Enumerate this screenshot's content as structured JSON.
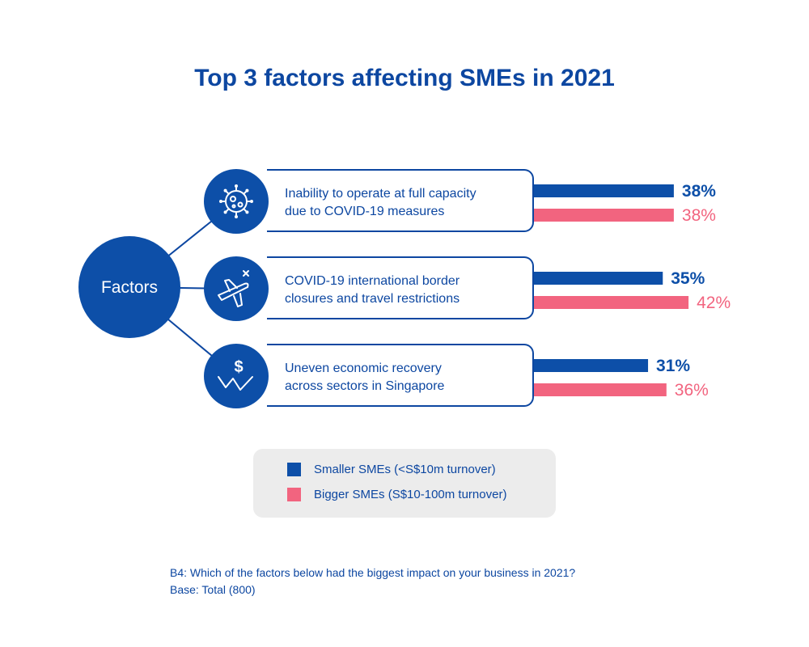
{
  "title": "Top 3 factors affecting SMEs in 2021",
  "hub_label": "Factors",
  "factors": [
    {
      "icon": "virus-icon",
      "line1": "Inability to operate at full capacity",
      "line2": "due to COVID-19 measures"
    },
    {
      "icon": "airplane-cancel-icon",
      "line1": "COVID-19 international border",
      "line2": "closures and travel restrictions"
    },
    {
      "icon": "dollar-decline-icon",
      "line1": "Uneven economic recovery",
      "line2": "across sectors in Singapore"
    }
  ],
  "chart_data": {
    "type": "bar",
    "orientation": "horizontal",
    "categories": [
      "Inability to operate at full capacity due to COVID-19 measures",
      "COVID-19 international border closures and travel restrictions",
      "Uneven economic recovery across sectors in Singapore"
    ],
    "series": [
      {
        "name": "Smaller SMEs (<S$10m turnover)",
        "values": [
          38,
          35,
          31
        ],
        "labels": [
          "38%",
          "35%",
          "31%"
        ],
        "color": "#0d4fa8"
      },
      {
        "name": "Bigger SMEs (S$10-100m turnover)",
        "values": [
          38,
          42,
          36
        ],
        "labels": [
          "38%",
          "42%",
          "36%"
        ],
        "color": "#f2647f"
      }
    ],
    "title": "Top 3 factors affecting SMEs in 2021"
  },
  "legend": [
    {
      "label": "Smaller SMEs (<S$10m turnover)",
      "color": "#0d4fa8"
    },
    {
      "label": "Bigger SMEs (S$10-100m turnover)",
      "color": "#f2647f"
    }
  ],
  "footnote": {
    "question": "B4: Which of the factors below had the biggest impact on your business in 2021?",
    "base": "Base: Total (800)"
  },
  "colors": {
    "primary": "#0d47a1",
    "secondary": "#f2647f",
    "legend_bg": "#ececec"
  }
}
